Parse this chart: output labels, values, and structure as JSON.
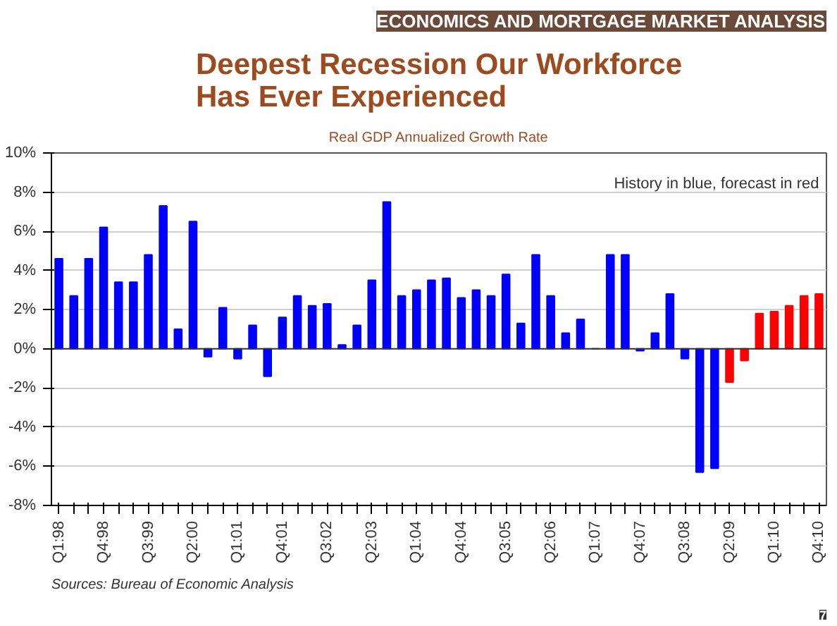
{
  "chart_data": {
    "type": "bar",
    "title": "Deepest Recession Our Workforce Has Ever Experienced",
    "subtitle": "Real GDP Annualized Growth Rate",
    "categories": [
      "Q1:98",
      null,
      null,
      "Q4:98",
      null,
      null,
      "Q3:99",
      null,
      null,
      "Q2:00",
      null,
      null,
      "Q1:01",
      null,
      null,
      "Q4:01",
      null,
      null,
      "Q3:02",
      null,
      null,
      "Q2:03",
      null,
      null,
      "Q1:04",
      null,
      null,
      "Q4:04",
      null,
      null,
      "Q3:05",
      null,
      null,
      "Q2:06",
      null,
      null,
      "Q1:07",
      null,
      null,
      "Q4:07",
      null,
      null,
      "Q3:08",
      null,
      null,
      "Q2:09",
      null,
      null,
      "Q1:10",
      null,
      null,
      "Q4:10"
    ],
    "values": [
      4.6,
      2.7,
      4.6,
      6.2,
      3.4,
      3.4,
      4.8,
      7.3,
      1.0,
      6.5,
      -0.4,
      2.1,
      -0.5,
      1.2,
      -1.4,
      1.6,
      2.7,
      2.2,
      2.3,
      0.2,
      1.2,
      3.5,
      7.5,
      2.7,
      3.0,
      3.5,
      3.6,
      2.6,
      3.0,
      2.7,
      3.8,
      1.3,
      4.8,
      2.7,
      0.8,
      1.5,
      0.0,
      4.8,
      4.8,
      -0.1,
      0.8,
      2.8,
      -0.5,
      -6.3,
      -6.1,
      -1.7,
      -0.6,
      1.8,
      1.9,
      2.2,
      2.7,
      2.8
    ],
    "colors": [
      "#0000ff",
      "#0000ff",
      "#0000ff",
      "#0000ff",
      "#0000ff",
      "#0000ff",
      "#0000ff",
      "#0000ff",
      "#0000ff",
      "#0000ff",
      "#0000ff",
      "#0000ff",
      "#0000ff",
      "#0000ff",
      "#0000ff",
      "#0000ff",
      "#0000ff",
      "#0000ff",
      "#0000ff",
      "#0000ff",
      "#0000ff",
      "#0000ff",
      "#0000ff",
      "#0000ff",
      "#0000ff",
      "#0000ff",
      "#0000ff",
      "#0000ff",
      "#0000ff",
      "#0000ff",
      "#0000ff",
      "#0000ff",
      "#0000ff",
      "#0000ff",
      "#0000ff",
      "#0000ff",
      "#0000ff",
      "#0000ff",
      "#0000ff",
      "#0000ff",
      "#0000ff",
      "#0000ff",
      "#0000ff",
      "#0000ff",
      "#0000ff",
      "#ff0000",
      "#ff0000",
      "#ff0000",
      "#ff0000",
      "#ff0000",
      "#ff0000",
      "#ff0000"
    ],
    "ylim": [
      -8,
      10
    ],
    "yticks": [
      {
        "value": -8,
        "label": "-8%"
      },
      {
        "value": -6,
        "label": "-6%"
      },
      {
        "value": -4,
        "label": "-4%"
      },
      {
        "value": -2,
        "label": "-2%"
      },
      {
        "value": 0,
        "label": "0%"
      },
      {
        "value": 2,
        "label": "2%"
      },
      {
        "value": 4,
        "label": "4%"
      },
      {
        "value": 6,
        "label": "6%"
      },
      {
        "value": 8,
        "label": "8%"
      },
      {
        "value": 10,
        "label": "10%"
      }
    ],
    "grid": "y",
    "annotations": [
      "ECONOMICS AND MORTGAGE MARKET ANALYSIS",
      "History in blue, forecast in red",
      "Sources: Bureau of Economic Analysis",
      "7"
    ]
  }
}
